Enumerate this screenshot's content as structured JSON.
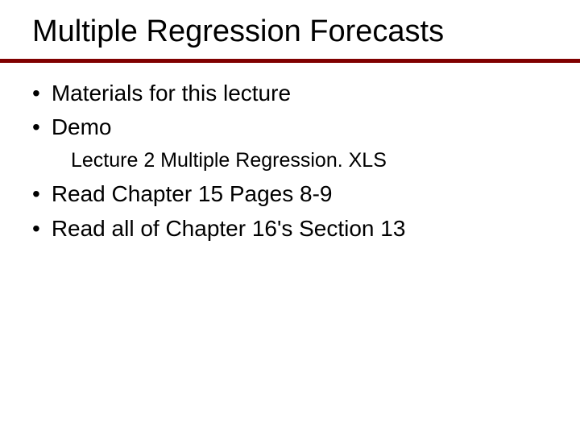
{
  "slide": {
    "title": "Multiple Regression Forecasts",
    "title_color": "#000000",
    "title_fontsize": 38,
    "underline_color": "#800000",
    "underline_height": 5,
    "background_color": "#ffffff",
    "bullets": [
      {
        "text": "Materials for this lecture",
        "marker": "•"
      },
      {
        "text": "Demo",
        "marker": "•"
      }
    ],
    "subitem": {
      "text": "Lecture 2 Multiple Regression. XLS"
    },
    "bullets2": [
      {
        "text": "Read Chapter 15 Pages 8-9",
        "marker": "•"
      },
      {
        "text": "Read all of Chapter 16's Section 13",
        "marker": "•"
      }
    ],
    "body_fontsize": 28,
    "sub_fontsize": 25,
    "text_color": "#000000"
  }
}
